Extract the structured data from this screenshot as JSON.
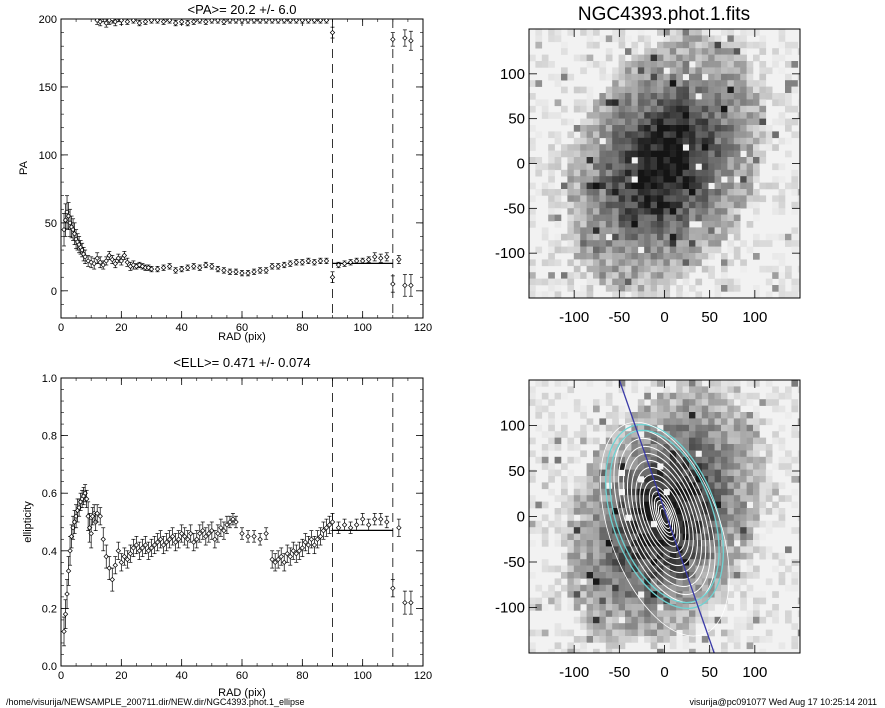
{
  "footer": {
    "path": "/home/visurija/NEWSAMPLE_200711.dir/NEW.dir/NGC4393.phot.1_ellipse",
    "user_stamp": "visurija@pc091077  Wed Aug 17 10:25:14 2011"
  },
  "image_panels": {
    "title": "NGC4393.phot.1.fits",
    "x_ticks": [
      "-100",
      "-50",
      "0",
      "50",
      "100"
    ],
    "y_ticks": [
      "100",
      "50",
      "0",
      "-50",
      "-100"
    ],
    "colors": {
      "isophote": "#ffffff",
      "inner_fit": "#6fd3d3",
      "major_axis": "#3a3aa8"
    }
  },
  "chart_data": [
    {
      "type": "scatter",
      "title": "<PA>=  20.2 +/-   6.0",
      "xlabel": "RAD (pix)",
      "ylabel": "PA",
      "xlim": [
        0,
        120
      ],
      "ylim": [
        -20,
        200
      ],
      "x_ticks": [
        0,
        20,
        40,
        60,
        80,
        100,
        120
      ],
      "y_ticks": [
        0,
        50,
        100,
        150,
        200
      ],
      "vlines": [
        90,
        110
      ],
      "mean_line": {
        "x": [
          90,
          110
        ],
        "y": 20.2
      },
      "series": [
        {
          "x": [
            1,
            1.5,
            2,
            2.5,
            3,
            3.5,
            4,
            4.5,
            5,
            5.5,
            6,
            6.5,
            7,
            7.5,
            8,
            9,
            10,
            11,
            12,
            13,
            14,
            15,
            16,
            17,
            18,
            19,
            20,
            21,
            22,
            23,
            24,
            25,
            26,
            27,
            28,
            29,
            30,
            32,
            34,
            36,
            38,
            40,
            42,
            44,
            46,
            48,
            50,
            52,
            54,
            56,
            58,
            60,
            62,
            64,
            66,
            68,
            70,
            72,
            74,
            76,
            78,
            80,
            82,
            84,
            86,
            88,
            90,
            92,
            94,
            96,
            98,
            100,
            102,
            104,
            106,
            108,
            110,
            112,
            114,
            116
          ],
          "y": [
            45,
            52,
            58,
            55,
            50,
            47,
            45,
            42,
            38,
            36,
            34,
            32,
            30,
            27,
            25,
            22,
            21,
            20,
            24,
            21,
            19,
            22,
            26,
            23,
            20,
            24,
            22,
            26,
            21,
            18,
            19,
            18,
            19,
            18,
            17,
            17,
            16,
            16,
            17,
            18,
            15,
            16,
            17,
            18,
            17,
            19,
            18,
            16,
            15,
            14,
            14,
            13,
            13,
            14,
            15,
            15,
            18,
            18,
            19,
            20,
            21,
            21,
            22,
            21,
            22,
            22,
            10,
            19,
            20,
            21,
            22,
            22,
            23,
            25,
            24,
            25,
            5,
            23,
            4,
            4
          ],
          "err": [
            12,
            12,
            12,
            10,
            10,
            8,
            8,
            8,
            7,
            6,
            6,
            5,
            5,
            5,
            5,
            4,
            4,
            4,
            4,
            4,
            3,
            3,
            3,
            3,
            3,
            3,
            3,
            3,
            3,
            3,
            3,
            2,
            2,
            2,
            2,
            2,
            2,
            2,
            2,
            2,
            2,
            2,
            2,
            2,
            2,
            2,
            2,
            2,
            2,
            2,
            2,
            2,
            2,
            2,
            2,
            2,
            2,
            2,
            2,
            2,
            2,
            2,
            2,
            2,
            2,
            2,
            4,
            2,
            2,
            2,
            2,
            2,
            2,
            3,
            3,
            3,
            6,
            3,
            8,
            8
          ]
        },
        {
          "x": [
            12,
            13,
            14,
            15,
            16,
            17,
            18,
            19,
            20,
            22,
            24,
            26,
            28,
            30,
            32,
            34,
            36,
            38,
            40,
            42,
            44,
            46,
            48,
            50,
            52,
            54,
            56,
            58,
            60,
            62,
            64,
            66,
            68,
            70,
            72,
            74,
            76,
            78,
            80,
            82,
            84,
            86,
            88,
            90,
            110,
            114,
            116
          ],
          "y": [
            199,
            198,
            201,
            197,
            199,
            200,
            198,
            201,
            199,
            198,
            199,
            197,
            198,
            199,
            199,
            198,
            199,
            197,
            198,
            197,
            198,
            199,
            198,
            199,
            199,
            198,
            199,
            199,
            199,
            199,
            199,
            199,
            199,
            199,
            199,
            199,
            199,
            199,
            199,
            199,
            199,
            199,
            199,
            190,
            185,
            186,
            184
          ],
          "err": [
            3,
            3,
            3,
            3,
            3,
            3,
            3,
            3,
            3,
            2,
            2,
            2,
            2,
            2,
            2,
            2,
            2,
            2,
            2,
            2,
            2,
            2,
            2,
            2,
            2,
            2,
            2,
            2,
            2,
            2,
            2,
            2,
            2,
            2,
            2,
            2,
            2,
            2,
            2,
            2,
            2,
            2,
            2,
            4,
            5,
            6,
            7
          ]
        }
      ]
    },
    {
      "type": "scatter",
      "title": "<ELL>= 0.471 +/-  0.074",
      "xlabel": "RAD (pix)",
      "ylabel": "ellipticity",
      "xlim": [
        0,
        120
      ],
      "ylim": [
        0,
        1
      ],
      "x_ticks": [
        0,
        20,
        40,
        60,
        80,
        100,
        120
      ],
      "y_ticks": [
        "0.0",
        "0.2",
        "0.4",
        "0.6",
        "0.8",
        "1.0"
      ],
      "vlines": [
        90,
        110
      ],
      "mean_line": {
        "x": [
          90,
          110
        ],
        "y": 0.471
      },
      "series": [
        {
          "x": [
            1,
            1.5,
            2,
            2.5,
            3,
            3.5,
            4,
            4.5,
            5,
            5.5,
            6,
            6.5,
            7,
            7.5,
            8,
            8.5,
            9,
            9.5,
            10,
            10.5,
            11,
            11.5,
            12,
            13,
            14,
            15,
            16,
            17,
            18,
            19,
            20,
            21,
            22,
            23,
            24,
            25,
            26,
            27,
            28,
            29,
            30,
            31,
            32,
            33,
            34,
            35,
            36,
            37,
            38,
            39,
            40,
            41,
            42,
            43,
            44,
            45,
            46,
            47,
            48,
            49,
            50,
            51,
            52,
            53,
            54,
            55,
            56,
            57,
            58,
            60,
            62,
            64,
            66,
            68,
            70,
            71,
            72,
            73,
            74,
            75,
            76,
            77,
            78,
            79,
            80,
            81,
            82,
            83,
            84,
            85,
            86,
            87,
            88,
            89,
            90,
            92,
            94,
            96,
            98,
            100,
            102,
            104,
            106,
            108,
            110,
            112,
            114,
            116
          ],
          "y": [
            0.12,
            0.18,
            0.25,
            0.33,
            0.4,
            0.45,
            0.48,
            0.5,
            0.52,
            0.54,
            0.55,
            0.57,
            0.58,
            0.59,
            0.6,
            0.58,
            0.52,
            0.48,
            0.46,
            0.52,
            0.53,
            0.5,
            0.53,
            0.52,
            0.44,
            0.38,
            0.34,
            0.3,
            0.35,
            0.4,
            0.36,
            0.38,
            0.37,
            0.39,
            0.41,
            0.42,
            0.4,
            0.41,
            0.42,
            0.4,
            0.41,
            0.42,
            0.43,
            0.44,
            0.42,
            0.43,
            0.44,
            0.45,
            0.43,
            0.44,
            0.46,
            0.45,
            0.44,
            0.46,
            0.43,
            0.44,
            0.46,
            0.47,
            0.45,
            0.46,
            0.47,
            0.44,
            0.46,
            0.48,
            0.47,
            0.49,
            0.5,
            0.51,
            0.5,
            0.46,
            0.45,
            0.45,
            0.44,
            0.46,
            0.37,
            0.36,
            0.37,
            0.38,
            0.36,
            0.39,
            0.38,
            0.4,
            0.39,
            0.4,
            0.41,
            0.43,
            0.42,
            0.44,
            0.42,
            0.44,
            0.45,
            0.47,
            0.48,
            0.49,
            0.5,
            0.48,
            0.49,
            0.48,
            0.49,
            0.51,
            0.49,
            0.51,
            0.51,
            0.5,
            0.27,
            0.48,
            0.22,
            0.22
          ],
          "err": [
            0.05,
            0.05,
            0.05,
            0.05,
            0.05,
            0.04,
            0.04,
            0.04,
            0.04,
            0.04,
            0.03,
            0.03,
            0.03,
            0.03,
            0.03,
            0.03,
            0.05,
            0.05,
            0.05,
            0.03,
            0.03,
            0.03,
            0.03,
            0.03,
            0.04,
            0.04,
            0.04,
            0.04,
            0.03,
            0.03,
            0.03,
            0.03,
            0.03,
            0.03,
            0.03,
            0.03,
            0.03,
            0.03,
            0.03,
            0.03,
            0.03,
            0.03,
            0.03,
            0.03,
            0.03,
            0.03,
            0.03,
            0.03,
            0.03,
            0.03,
            0.03,
            0.03,
            0.03,
            0.03,
            0.03,
            0.03,
            0.03,
            0.03,
            0.03,
            0.03,
            0.03,
            0.03,
            0.03,
            0.03,
            0.03,
            0.03,
            0.02,
            0.02,
            0.02,
            0.02,
            0.02,
            0.02,
            0.02,
            0.02,
            0.03,
            0.03,
            0.03,
            0.03,
            0.03,
            0.03,
            0.03,
            0.03,
            0.03,
            0.03,
            0.03,
            0.03,
            0.03,
            0.03,
            0.03,
            0.03,
            0.03,
            0.03,
            0.03,
            0.03,
            0.03,
            0.02,
            0.02,
            0.02,
            0.02,
            0.02,
            0.02,
            0.02,
            0.02,
            0.02,
            0.03,
            0.03,
            0.04,
            0.04
          ]
        }
      ]
    }
  ]
}
